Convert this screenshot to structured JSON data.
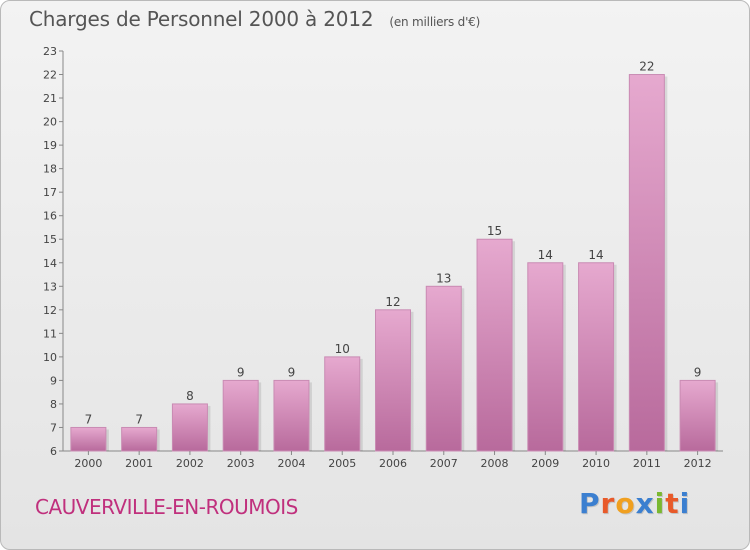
{
  "title": "Charges de Personnel 2000 à 2012",
  "subtitle": "(en milliers d'€)",
  "commune": "CAUVERVILLE-EN-ROUMOIS",
  "logo": {
    "text": "Proxiti",
    "colors": [
      "#3b7fd0",
      "#e85a2a",
      "#f0a020",
      "#3b7fd0",
      "#7ab830",
      "#e85a2a",
      "#3b7fd0"
    ]
  },
  "colors": {
    "bar": "#d58ab8",
    "bar_dark": "#b86a9c",
    "commune": "#c0307d",
    "text": "#555555"
  },
  "chart_data": {
    "type": "bar",
    "categories": [
      "2000",
      "2001",
      "2002",
      "2003",
      "2004",
      "2005",
      "2006",
      "2007",
      "2008",
      "2009",
      "2010",
      "2011",
      "2012"
    ],
    "values": [
      7,
      7,
      8,
      9,
      9,
      10,
      12,
      13,
      15,
      14,
      14,
      22,
      9
    ],
    "title": "Charges de Personnel 2000 à 2012",
    "subtitle": "(en milliers d'€)",
    "xlabel": "",
    "ylabel": "",
    "ylim": [
      6,
      23
    ],
    "yticks": [
      6,
      7,
      8,
      9,
      10,
      11,
      12,
      13,
      14,
      15,
      16,
      17,
      18,
      19,
      20,
      21,
      22,
      23
    ],
    "grid": false,
    "data_labels": true
  }
}
